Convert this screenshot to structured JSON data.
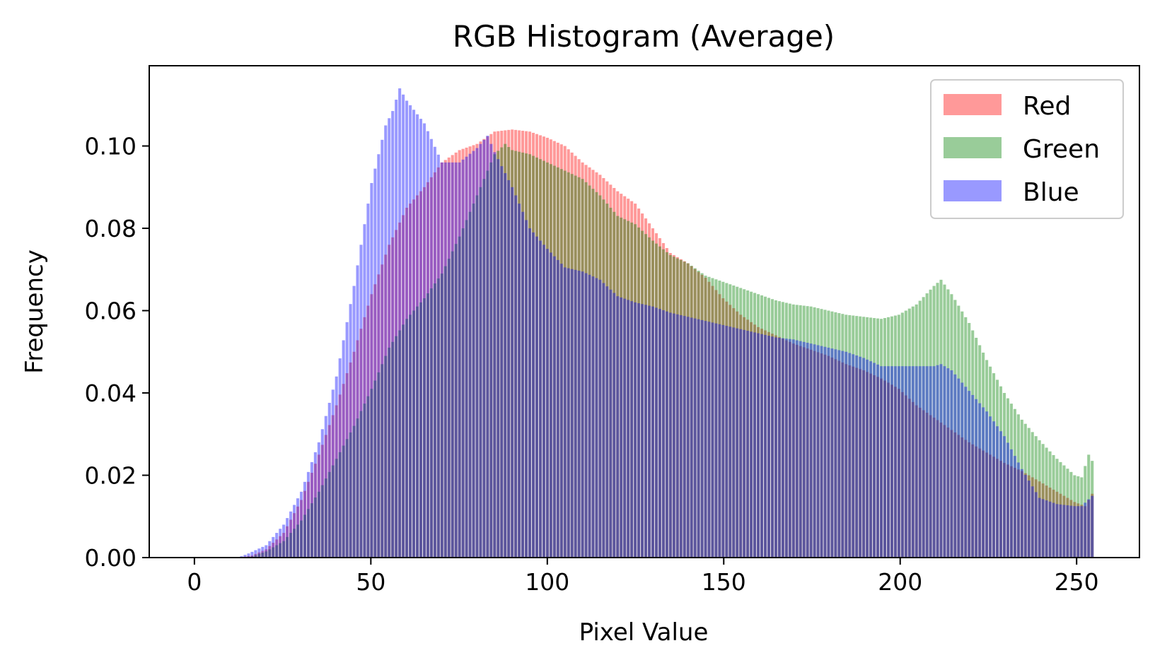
{
  "chart_data": {
    "type": "bar",
    "title": "RGB Histogram (Average)",
    "xlabel": "Pixel Value",
    "ylabel": "Frequency",
    "xlim": [
      -12.8,
      267.8
    ],
    "ylim": [
      0,
      0.1195
    ],
    "xticks": [
      0,
      50,
      100,
      150,
      200,
      250
    ],
    "xtick_labels": [
      "0",
      "50",
      "100",
      "150",
      "200",
      "250"
    ],
    "yticks": [
      0,
      0.02,
      0.04,
      0.06,
      0.08,
      0.1
    ],
    "ytick_labels": [
      "0.00",
      "0.02",
      "0.04",
      "0.06",
      "0.08",
      "0.10"
    ],
    "grid": false,
    "legend_position": "top-right",
    "bins": 256,
    "bar_alpha": 0.4,
    "series": [
      {
        "name": "Red",
        "color": "#ff0000",
        "anchors": [
          [
            0,
            0
          ],
          [
            12,
            0
          ],
          [
            16,
            0.0005
          ],
          [
            20,
            0.002
          ],
          [
            25,
            0.006
          ],
          [
            30,
            0.014
          ],
          [
            35,
            0.025
          ],
          [
            40,
            0.037
          ],
          [
            45,
            0.05
          ],
          [
            50,
            0.064
          ],
          [
            55,
            0.076
          ],
          [
            60,
            0.085
          ],
          [
            65,
            0.09
          ],
          [
            70,
            0.096
          ],
          [
            75,
            0.099
          ],
          [
            80,
            0.1005
          ],
          [
            85,
            0.1035
          ],
          [
            90,
            0.104
          ],
          [
            95,
            0.1035
          ],
          [
            100,
            0.102
          ],
          [
            105,
            0.1
          ],
          [
            110,
            0.096
          ],
          [
            115,
            0.093
          ],
          [
            120,
            0.089
          ],
          [
            125,
            0.086
          ],
          [
            130,
            0.08
          ],
          [
            135,
            0.074
          ],
          [
            140,
            0.0715
          ],
          [
            145,
            0.068
          ],
          [
            150,
            0.063
          ],
          [
            155,
            0.059
          ],
          [
            160,
            0.056
          ],
          [
            165,
            0.054
          ],
          [
            170,
            0.052
          ],
          [
            175,
            0.0505
          ],
          [
            180,
            0.049
          ],
          [
            185,
            0.047
          ],
          [
            190,
            0.0455
          ],
          [
            195,
            0.0435
          ],
          [
            200,
            0.041
          ],
          [
            205,
            0.037
          ],
          [
            210,
            0.034
          ],
          [
            215,
            0.031
          ],
          [
            220,
            0.028
          ],
          [
            225,
            0.0255
          ],
          [
            230,
            0.023
          ],
          [
            235,
            0.021
          ],
          [
            240,
            0.0185
          ],
          [
            245,
            0.016
          ],
          [
            250,
            0.0135
          ],
          [
            253,
            0.0125
          ],
          [
            255,
            0.0155
          ]
        ]
      },
      {
        "name": "Green",
        "color": "#008000",
        "anchors": [
          [
            0,
            0
          ],
          [
            12,
            0
          ],
          [
            16,
            0.0003
          ],
          [
            20,
            0.0015
          ],
          [
            25,
            0.004
          ],
          [
            30,
            0.009
          ],
          [
            35,
            0.016
          ],
          [
            40,
            0.024
          ],
          [
            45,
            0.032
          ],
          [
            50,
            0.041
          ],
          [
            55,
            0.051
          ],
          [
            60,
            0.058
          ],
          [
            65,
            0.063
          ],
          [
            70,
            0.069
          ],
          [
            75,
            0.078
          ],
          [
            80,
            0.088
          ],
          [
            85,
            0.098
          ],
          [
            88,
            0.1005
          ],
          [
            90,
            0.099
          ],
          [
            95,
            0.098
          ],
          [
            100,
            0.096
          ],
          [
            105,
            0.094
          ],
          [
            110,
            0.092
          ],
          [
            115,
            0.088
          ],
          [
            120,
            0.083
          ],
          [
            125,
            0.081
          ],
          [
            130,
            0.077
          ],
          [
            135,
            0.0735
          ],
          [
            140,
            0.0715
          ],
          [
            145,
            0.0685
          ],
          [
            150,
            0.067
          ],
          [
            155,
            0.0655
          ],
          [
            160,
            0.064
          ],
          [
            165,
            0.0625
          ],
          [
            170,
            0.0615
          ],
          [
            175,
            0.061
          ],
          [
            180,
            0.06
          ],
          [
            185,
            0.059
          ],
          [
            190,
            0.0585
          ],
          [
            195,
            0.058
          ],
          [
            200,
            0.059
          ],
          [
            205,
            0.0615
          ],
          [
            210,
            0.066
          ],
          [
            212,
            0.0675
          ],
          [
            215,
            0.064
          ],
          [
            220,
            0.057
          ],
          [
            225,
            0.048
          ],
          [
            230,
            0.04
          ],
          [
            235,
            0.0335
          ],
          [
            240,
            0.0285
          ],
          [
            245,
            0.024
          ],
          [
            250,
            0.02
          ],
          [
            252,
            0.0195
          ],
          [
            254,
            0.025
          ],
          [
            255,
            0.0235
          ]
        ]
      },
      {
        "name": "Blue",
        "color": "#0000ff",
        "anchors": [
          [
            0,
            0
          ],
          [
            12,
            0
          ],
          [
            15,
            0.001
          ],
          [
            20,
            0.003
          ],
          [
            25,
            0.008
          ],
          [
            30,
            0.016
          ],
          [
            35,
            0.028
          ],
          [
            40,
            0.044
          ],
          [
            45,
            0.066
          ],
          [
            50,
            0.091
          ],
          [
            54,
            0.105
          ],
          [
            56,
            0.1085
          ],
          [
            58,
            0.114
          ],
          [
            60,
            0.111
          ],
          [
            65,
            0.1055
          ],
          [
            70,
            0.096
          ],
          [
            75,
            0.096
          ],
          [
            80,
            0.0995
          ],
          [
            83,
            0.1025
          ],
          [
            85,
            0.0985
          ],
          [
            90,
            0.09
          ],
          [
            95,
            0.08
          ],
          [
            100,
            0.075
          ],
          [
            105,
            0.0705
          ],
          [
            110,
            0.0695
          ],
          [
            115,
            0.0675
          ],
          [
            120,
            0.0635
          ],
          [
            125,
            0.062
          ],
          [
            130,
            0.061
          ],
          [
            135,
            0.0595
          ],
          [
            140,
            0.0585
          ],
          [
            145,
            0.0575
          ],
          [
            150,
            0.0565
          ],
          [
            155,
            0.0555
          ],
          [
            160,
            0.0545
          ],
          [
            165,
            0.0535
          ],
          [
            170,
            0.053
          ],
          [
            175,
            0.052
          ],
          [
            180,
            0.051
          ],
          [
            185,
            0.05
          ],
          [
            190,
            0.0485
          ],
          [
            195,
            0.0465
          ],
          [
            200,
            0.0465
          ],
          [
            205,
            0.0465
          ],
          [
            210,
            0.0465
          ],
          [
            212,
            0.047
          ],
          [
            215,
            0.0455
          ],
          [
            220,
            0.0405
          ],
          [
            225,
            0.0355
          ],
          [
            230,
            0.0295
          ],
          [
            235,
            0.0215
          ],
          [
            240,
            0.0145
          ],
          [
            245,
            0.013
          ],
          [
            250,
            0.0125
          ],
          [
            252,
            0.0125
          ],
          [
            255,
            0.015
          ]
        ]
      }
    ]
  }
}
